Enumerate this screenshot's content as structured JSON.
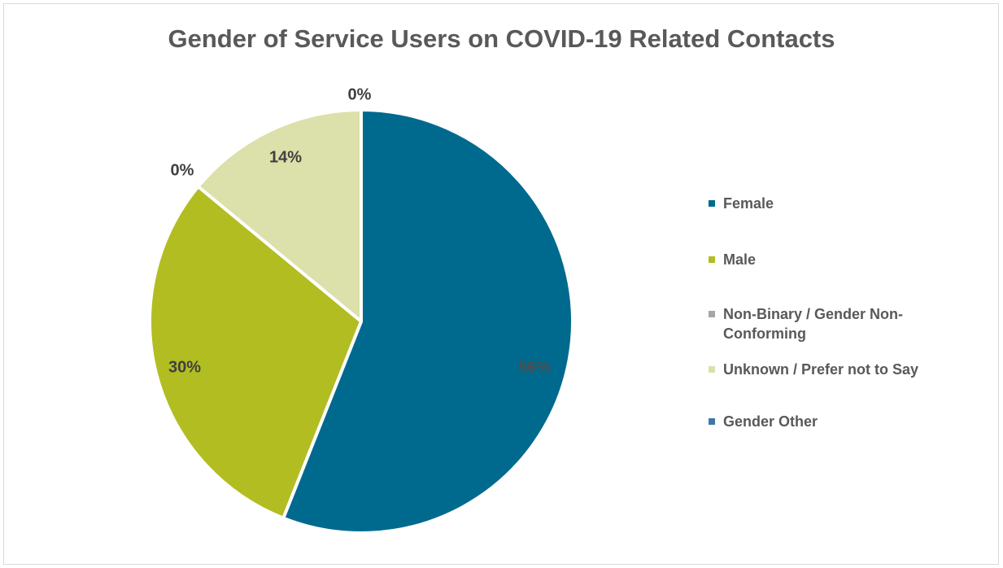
{
  "chart_data": {
    "type": "pie",
    "title": "Gender of Service Users on COVID-19 Related Contacts",
    "slices": [
      {
        "label": "Female",
        "value": 56,
        "display": "56%",
        "color": "#006a8e"
      },
      {
        "label": "Male",
        "value": 30,
        "display": "30%",
        "color": "#b2bd22"
      },
      {
        "label": "Non-Binary / Gender Non-Conforming",
        "value": 0,
        "display": "0%",
        "color": "#a6a6a6"
      },
      {
        "label": "Unknown / Prefer not to Say",
        "value": 14,
        "display": "14%",
        "color": "#dce0aa"
      },
      {
        "label": "Gender Other",
        "value": 0,
        "display": "0%",
        "color": "#3f78a6"
      }
    ],
    "legend_position": "right"
  }
}
